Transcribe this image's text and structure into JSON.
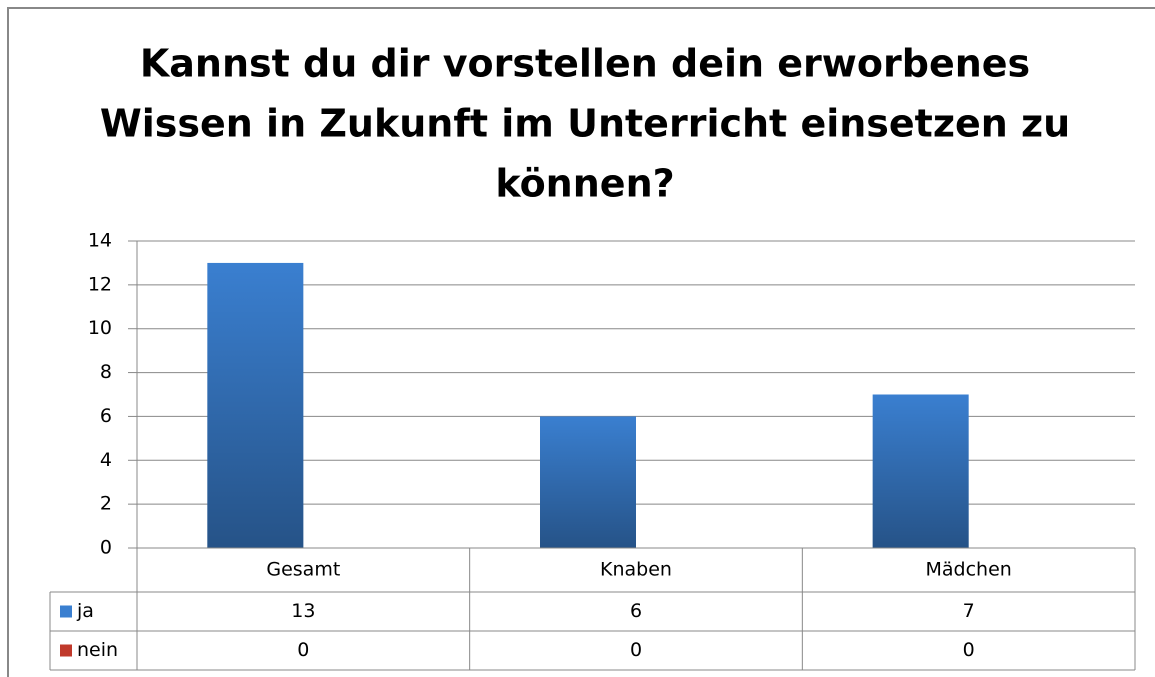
{
  "chart_data": {
    "type": "bar",
    "title": [
      "Kannst du dir vorstellen dein erworbenes",
      "Wissen in Zukunft im Unterricht einsetzen zu",
      "können?"
    ],
    "categories": [
      "Gesamt",
      "Knaben",
      "Mädchen"
    ],
    "series": [
      {
        "name": "ja",
        "color": "#3a7fd0",
        "values": [
          13,
          6,
          7
        ]
      },
      {
        "name": "nein",
        "color": "#c0392b",
        "values": [
          0,
          0,
          0
        ]
      }
    ],
    "ylim": [
      0,
      14
    ],
    "yticks": [
      0,
      2,
      4,
      6,
      8,
      10,
      12,
      14
    ],
    "grid": true,
    "data_table": true
  }
}
